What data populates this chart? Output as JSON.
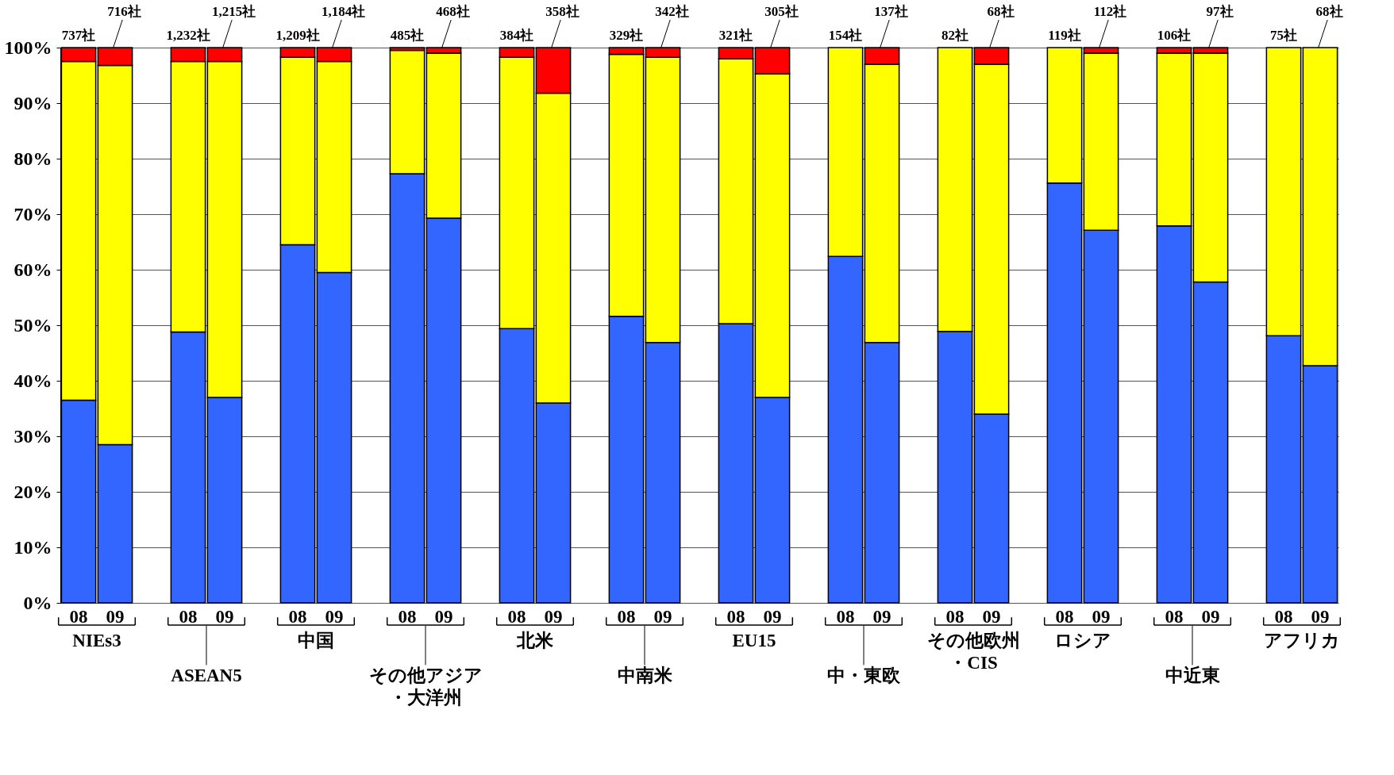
{
  "chart_data": {
    "type": "bar",
    "stacked": true,
    "categories": [
      "08",
      "09",
      "08",
      "09",
      "08",
      "09",
      "08",
      "09",
      "08",
      "09",
      "08",
      "09",
      "08",
      "09",
      "08",
      "09",
      "08",
      "09",
      "08",
      "09",
      "08",
      "09",
      "08",
      "09"
    ],
    "series": [
      {
        "color": "#3366ff",
        "values": [
          36.5,
          28.5,
          48.8,
          37.0,
          64.5,
          59.5,
          77.3,
          69.3,
          49.4,
          36.0,
          51.6,
          46.9,
          50.3,
          37.0,
          62.4,
          46.9,
          48.9,
          34.0,
          75.6,
          67.1,
          67.9,
          57.8,
          48.1,
          42.7
        ]
      },
      {
        "color": "#ffff00",
        "values": [
          61.0,
          68.3,
          48.7,
          60.5,
          33.8,
          38.0,
          22.2,
          29.7,
          48.9,
          55.8,
          47.2,
          51.4,
          47.7,
          58.3,
          37.6,
          50.1,
          51.1,
          63.0,
          24.4,
          31.9,
          31.1,
          41.2,
          51.9,
          57.3
        ]
      },
      {
        "color": "#ff0000",
        "values": [
          2.5,
          3.2,
          2.5,
          2.5,
          1.7,
          2.5,
          0.5,
          1.0,
          1.7,
          8.2,
          1.2,
          1.7,
          2.0,
          4.7,
          0,
          3.0,
          0,
          3.0,
          0,
          1.0,
          1.0,
          1.0,
          0,
          0
        ]
      }
    ],
    "annotations": [
      "737社",
      "716社",
      "1,232社",
      "1,215社",
      "1,209社",
      "1,184社",
      "485社",
      "468社",
      "384社",
      "358社",
      "329社",
      "342社",
      "321社",
      "305社",
      "154社",
      "137社",
      "82社",
      "68社",
      "119社",
      "112社",
      "106社",
      "97社",
      "75社",
      "68社",
      "NIEs3",
      "ASEAN5",
      "中国",
      "その他アジア・大洋州",
      "北米",
      "中南米",
      "EU15",
      "中・東欧",
      "その他欧州・CIS",
      "ロシア",
      "中近東",
      "アフリカ"
    ],
    "ylim": [
      0,
      100
    ],
    "yticks": [
      {
        "value": 0,
        "label": "0%"
      },
      {
        "value": 10,
        "label": "10%"
      },
      {
        "value": 20,
        "label": "20%"
      },
      {
        "value": 30,
        "label": "30%"
      },
      {
        "value": 40,
        "label": "40%"
      },
      {
        "value": 50,
        "label": "50%"
      },
      {
        "value": 60,
        "label": "60%"
      },
      {
        "value": 70,
        "label": "70%"
      },
      {
        "value": 80,
        "label": "80%"
      },
      {
        "value": 90,
        "label": "90%"
      },
      {
        "value": 100,
        "label": "100%"
      }
    ],
    "grid": "y"
  }
}
